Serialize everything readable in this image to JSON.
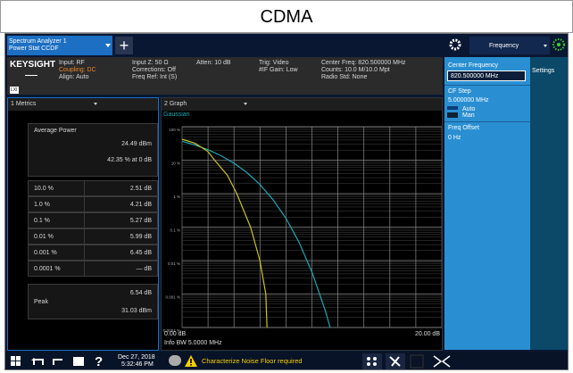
{
  "title": "CDMA",
  "tab": {
    "line1": "Spectrum Analyzer 1",
    "line2": "Power Stat CCDF"
  },
  "menu": "Frequency",
  "info": {
    "brand": "KEYSIGHT",
    "lxi": "LXI",
    "col1": [
      "Input: RF",
      "Coupling: DC",
      "Align: Auto"
    ],
    "col2": [
      "Input Z: 50 Ω",
      "Corrections: Off",
      "Freq Ref: Int (S)"
    ],
    "col3": [
      "Atten: 10 dB"
    ],
    "col4": [
      "Trig: Video",
      "#IF Gain: Low"
    ],
    "col5": [
      "Center Freq: 820.500000 MHz",
      "Counts: 10.0 M/10.0 Mpt",
      "Radio Std: None"
    ]
  },
  "settings_panel": {
    "tab": "Settings",
    "center_frequency": {
      "label": "Center Frequency",
      "value": "820.500000 MHz"
    },
    "cf_step": {
      "label": "CF Step",
      "value": "5.000000 MHz",
      "options": [
        "Auto",
        "Man"
      ]
    },
    "freq_offset": {
      "label": "Freq Offset",
      "value": "0 Hz"
    }
  },
  "metrics": {
    "header": "1 Metrics",
    "average_power": {
      "label": "Average Power",
      "rows": [
        "24.49 dBm",
        "42.35 % at 0 dB"
      ]
    },
    "table": [
      [
        "10.0 %",
        "2.51 dB"
      ],
      [
        "1.0 %",
        "4.21 dB"
      ],
      [
        "0.1 %",
        "5.27 dB"
      ],
      [
        "0.01 %",
        "5.99 dB"
      ],
      [
        "0.001 %",
        "6.45 dB"
      ],
      [
        "0.0001 %",
        "— dB"
      ]
    ],
    "peak": {
      "label": "Peak",
      "rows": [
        "6.54 dB",
        "31.03 dBm"
      ]
    }
  },
  "graph": {
    "header": "2 Graph",
    "footer": "Info BW 5.0000 MHz",
    "chart": {
      "type": "line",
      "log_y": true,
      "xlim": [
        0,
        20
      ],
      "xticks": [
        {
          "value": 0,
          "label": "0.00 dB"
        },
        {
          "value": 20,
          "label": "20.00 dB"
        }
      ],
      "x_divisions": 10,
      "ylim": [
        0.0001,
        100
      ],
      "yticks": [
        {
          "value": 100,
          "label": "100 %"
        },
        {
          "value": 10,
          "label": "10 %"
        },
        {
          "value": 1,
          "label": "1 %"
        },
        {
          "value": 0.1,
          "label": "0.1 %"
        },
        {
          "value": 0.01,
          "label": "0.01 %"
        },
        {
          "value": 0.001,
          "label": "0.001 %"
        },
        {
          "value": 0.0001,
          "label": "0.0001 %"
        }
      ],
      "series": [
        {
          "name": "Gaussian",
          "color": "#1aa7b5",
          "x": [
            0,
            1,
            2,
            3,
            4,
            5,
            6,
            7,
            8,
            9,
            10,
            11,
            11.4
          ],
          "values": [
            36.8,
            28.4,
            20.5,
            13.6,
            8.11,
            4.23,
            1.87,
            0.666,
            0.182,
            0.0355,
            0.00454,
            0.00034,
            0.0001
          ]
        },
        {
          "color": "#c9c21c",
          "x": [
            0,
            1,
            2,
            2.51,
            3.5,
            4.21,
            5.27,
            5.99,
            6.45,
            6.54
          ],
          "values": [
            42.35,
            32,
            18,
            10,
            3.5,
            1,
            0.1,
            0.01,
            0.001,
            0.0001
          ]
        }
      ]
    }
  },
  "taskbar": {
    "date": "Dec 27, 2018",
    "time": "5:32:46 PM",
    "message": "Characterize Noise Floor required"
  }
}
